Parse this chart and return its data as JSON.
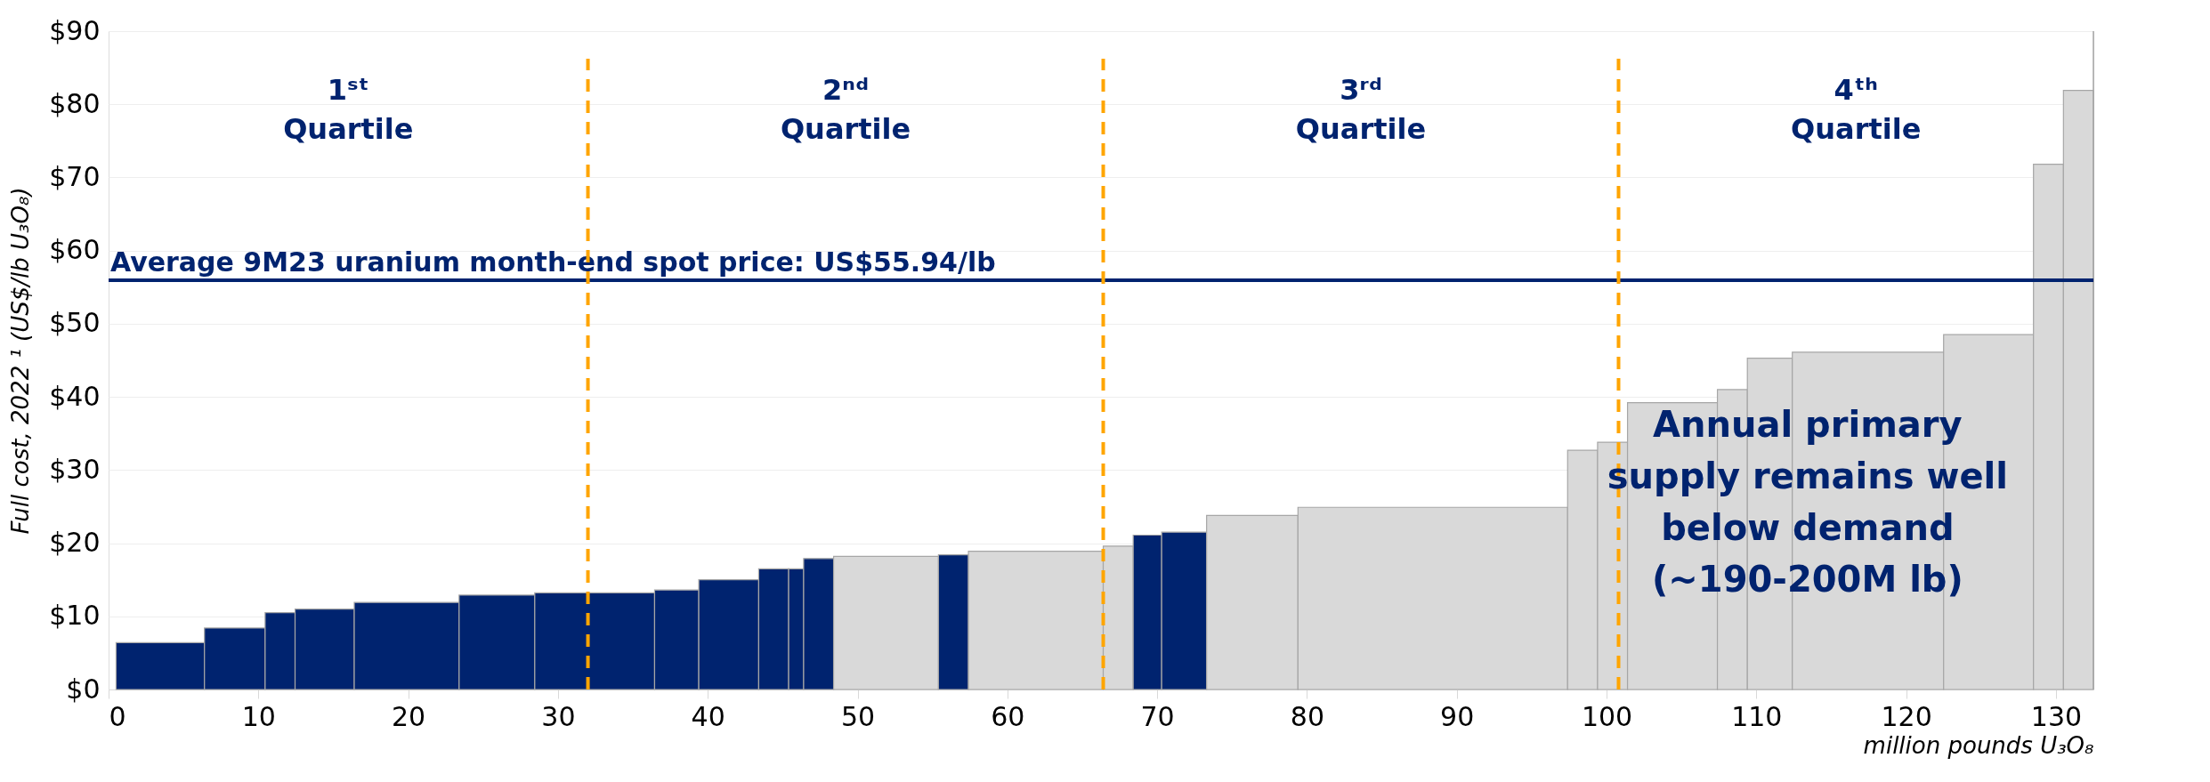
{
  "chart_data": {
    "type": "histogram",
    "ylabel": "Full cost, 2022 ¹ (US$/lb U₃O₈)",
    "xlabel": "million pounds U₃O₈",
    "bins": [
      0.5,
      6.4,
      10.45,
      12.45,
      16.4,
      23.4,
      28.45,
      36.45,
      39.4,
      43.4,
      45.4,
      46.4,
      48.4,
      55.4,
      57.4,
      66.4,
      68.4,
      70.3,
      73.3,
      79.4,
      97.4,
      99.4,
      101.4,
      107.4,
      109.4,
      112.4,
      122.5,
      128.5,
      130.5,
      132.5
    ],
    "values": [
      6.4,
      8.4,
      10.5,
      11.0,
      11.9,
      12.9,
      13.2,
      13.6,
      15.0,
      16.5,
      16.5,
      17.9,
      18.2,
      18.4,
      18.9,
      19.6,
      21.1,
      21.5,
      23.8,
      24.9,
      32.7,
      33.8,
      39.2,
      41.0,
      45.3,
      46.1,
      48.5,
      71.8,
      81.9
    ],
    "colors": [
      "#00236f",
      "#00236f",
      "#00236f",
      "#00236f",
      "#00236f",
      "#00236f",
      "#00236f",
      "#00236f",
      "#00236f",
      "#00236f",
      "#00236f",
      "#00236f",
      "#d9d9d9",
      "#00236f",
      "#d9d9d9",
      "#d9d9d9",
      "#00236f",
      "#00236f",
      "#d9d9d9",
      "#d9d9d9",
      "#d9d9d9",
      "#d9d9d9",
      "#d9d9d9",
      "#d9d9d9",
      "#d9d9d9",
      "#d9d9d9",
      "#d9d9d9",
      "#d9d9d9",
      "#d9d9d9"
    ],
    "xlim": [
      0,
      132.5
    ],
    "xticks": [
      0,
      10,
      20,
      30,
      40,
      50,
      60,
      70,
      80,
      90,
      100,
      110,
      120,
      130
    ],
    "ylim": [
      0,
      90
    ],
    "yticks": [
      {
        "value": 0,
        "label": "$0"
      },
      {
        "value": 10,
        "label": "$10"
      },
      {
        "value": 20,
        "label": "$20"
      },
      {
        "value": 30,
        "label": "$30"
      },
      {
        "value": 40,
        "label": "$40"
      },
      {
        "value": 50,
        "label": "$50"
      },
      {
        "value": 60,
        "label": "$60"
      },
      {
        "value": 70,
        "label": "$70"
      },
      {
        "value": 80,
        "label": "$80"
      },
      {
        "value": 90,
        "label": "$90"
      }
    ],
    "grid": "y",
    "ref_lines": [
      {
        "axis": "y",
        "value": 55.94,
        "label": "Average 9M23 uranium month-end spot price: US$55.94/lb",
        "color": "#00236f",
        "line_style": "solid"
      },
      {
        "axis": "x",
        "value": 32.0,
        "label": null,
        "color": "#ffa500",
        "line_style": "dashed"
      },
      {
        "axis": "x",
        "value": 66.4,
        "label": null,
        "color": "#ffa500",
        "line_style": "dashed"
      },
      {
        "axis": "x",
        "value": 100.8,
        "label": null,
        "color": "#ffa500",
        "line_style": "dashed"
      }
    ],
    "annotations": [
      "1ˢᵗ\nQuartile",
      "2ⁿᵈ\nQuartile",
      "3ʳᵈ\nQuartile",
      "4ᵗʰ\nQuartile",
      "Annual primary\nsupply remains well\nbelow demand\n(~190-200M lb)"
    ]
  }
}
